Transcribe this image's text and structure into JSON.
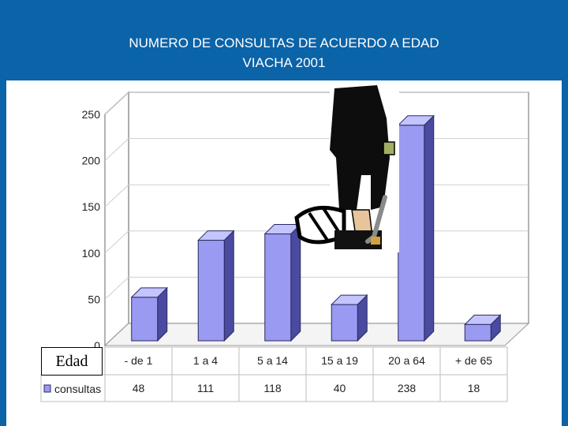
{
  "page": {
    "title_line1": "NUMERO DE CONSULTAS DE ACUERDO A EDAD",
    "title_line2": "VIACHA 2001",
    "textbox_label": "Edad",
    "illustration": "person-with-crutch-icon"
  },
  "colors": {
    "background": "#0b63a8",
    "bar_front": "#9a9af2",
    "bar_top": "#c4c4ff",
    "bar_side": "#4a4aa0",
    "grid": "#cfcfcf"
  },
  "chart_data": {
    "type": "bar",
    "title": "NUMERO DE CONSULTAS DE ACUERDO A EDAD VIACHA 2001",
    "categories": [
      "- de 1",
      "1 a 4",
      "5 a 14",
      "15 a 19",
      "20 a 64",
      "+ de 65"
    ],
    "series": [
      {
        "name": "consultas",
        "values": [
          48,
          111,
          118,
          40,
          238,
          18
        ]
      }
    ],
    "yticks": [
      0,
      50,
      100,
      150,
      200,
      250
    ],
    "ylim": [
      0,
      250
    ],
    "grid": true,
    "legend": "bottom-left (data table)"
  }
}
